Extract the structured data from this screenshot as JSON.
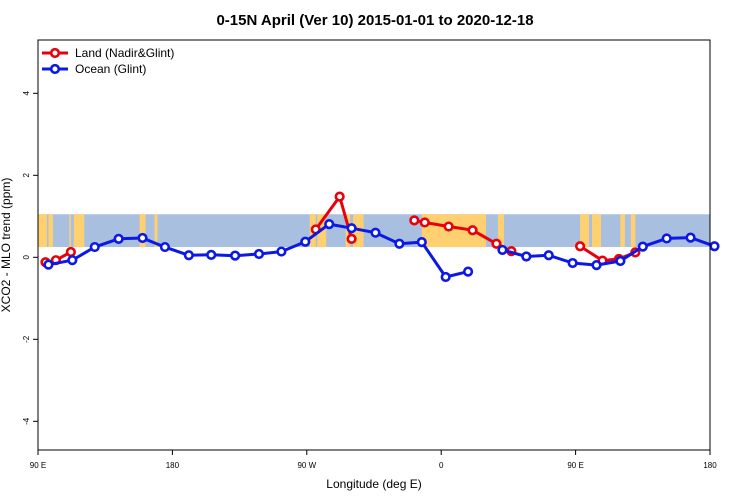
{
  "chart_data": {
    "type": "line",
    "title": "0-15N April (Ver 10)   2015-01-01 to 2020-12-18",
    "xlabel": "Longitude (deg E)",
    "ylabel": "XCO2 - MLO trend (ppm)",
    "x_ticks": [
      {
        "value": 90,
        "label": "90 E"
      },
      {
        "value": 180,
        "label": "180"
      },
      {
        "value": 270,
        "label": "90 W"
      },
      {
        "value": 360,
        "label": "0"
      },
      {
        "value": 450,
        "label": "90 E"
      },
      {
        "value": 540,
        "label": "180"
      }
    ],
    "y_ticks": [
      -4,
      -2,
      0,
      2,
      4
    ],
    "xlim": [
      90,
      540
    ],
    "ylim": [
      -4.7,
      5.3
    ],
    "map_band": {
      "ymin": 0.25,
      "ymax": 1.05
    },
    "colors": {
      "land": "#e8000b",
      "ocean": "#0b18e6",
      "sea": "#a9bfe0",
      "continent": "#ffd070"
    },
    "legend": {
      "position": "top-left",
      "entries": [
        {
          "name": "Land (Nadir&Glint)",
          "color": "#e8000b"
        },
        {
          "name": "Ocean (Glint)",
          "color": "#0b18e6"
        }
      ]
    },
    "series": [
      {
        "name": "Land (Nadir&Glint)",
        "color": "#e8000b",
        "segments": [
          [
            [
              95,
              -0.12
            ],
            [
              102,
              -0.07
            ],
            [
              112,
              0.13
            ]
          ],
          [
            [
              276,
              0.68
            ],
            [
              292,
              1.48
            ],
            [
              300,
              0.45
            ]
          ],
          [
            [
              342,
              0.9
            ],
            [
              349,
              0.85
            ],
            [
              365,
              0.75
            ],
            [
              381,
              0.66
            ],
            [
              397,
              0.33
            ],
            [
              407,
              0.15
            ]
          ],
          [
            [
              453,
              0.27
            ],
            [
              468,
              -0.08
            ],
            [
              479,
              -0.04
            ],
            [
              490,
              0.12
            ]
          ]
        ]
      },
      {
        "name": "Ocean (Glint)",
        "color": "#0b18e6",
        "segments": [
          [
            [
              97,
              -0.18
            ],
            [
              113,
              -0.07
            ],
            [
              128,
              0.25
            ],
            [
              144,
              0.45
            ],
            [
              160,
              0.47
            ],
            [
              175,
              0.25
            ],
            [
              191,
              0.05
            ],
            [
              206,
              0.06
            ],
            [
              222,
              0.04
            ],
            [
              238,
              0.08
            ],
            [
              253,
              0.14
            ],
            [
              269,
              0.38
            ],
            [
              285,
              0.81
            ],
            [
              300,
              0.71
            ],
            [
              316,
              0.6
            ],
            [
              332,
              0.33
            ],
            [
              347,
              0.37
            ],
            [
              363,
              -0.48
            ],
            [
              378,
              -0.35
            ]
          ],
          [
            [
              401,
              0.18
            ],
            [
              417,
              0.02
            ],
            [
              432,
              0.05
            ],
            [
              448,
              -0.14
            ],
            [
              464,
              -0.19
            ],
            [
              480,
              -0.09
            ],
            [
              495,
              0.26
            ],
            [
              511,
              0.46
            ],
            [
              527,
              0.48
            ],
            [
              543,
              0.27
            ]
          ]
        ]
      }
    ]
  }
}
